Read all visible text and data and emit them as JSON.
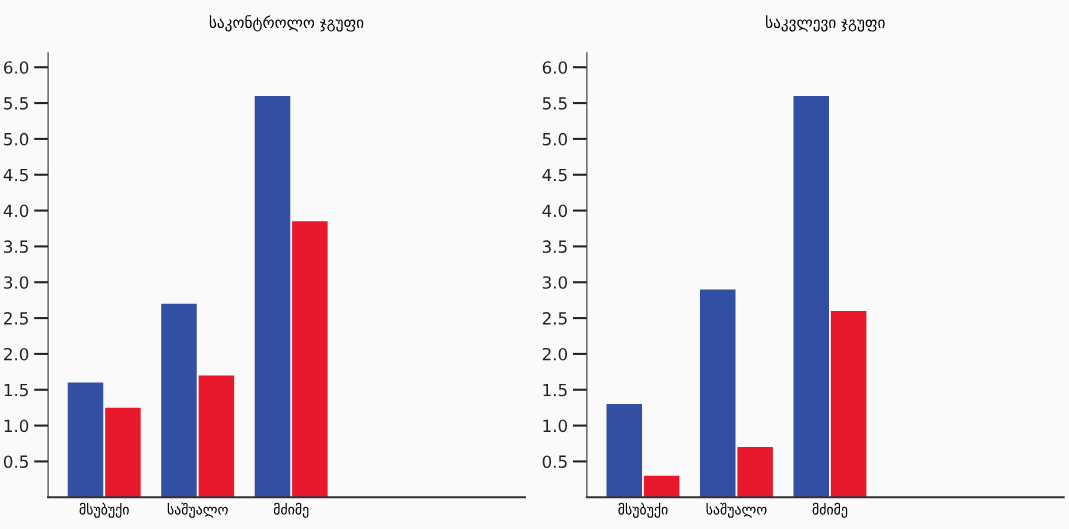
{
  "chart_data": [
    {
      "type": "bar",
      "title": "საკონტროლო ჯგუფი",
      "categories": [
        "მსუბუქი",
        "საშუალო",
        "მძიმე"
      ],
      "series": [
        {
          "color": "#334fa1",
          "values": [
            1.6,
            2.7,
            5.6
          ]
        },
        {
          "color": "#e8192c",
          "values": [
            1.25,
            1.7,
            3.85
          ]
        }
      ],
      "ylim": [
        0,
        6.2
      ],
      "yticks": [
        0.5,
        {
          "value": 1,
          "label": "1.0"
        },
        1.5,
        {
          "value": 2,
          "label": "2.0"
        },
        2.5,
        {
          "value": 3,
          "label": "3.0"
        },
        3.5,
        {
          "value": 4,
          "label": "4.0"
        },
        4.5,
        {
          "value": 5,
          "label": "5.0"
        },
        5.5,
        {
          "value": 6,
          "label": "6.0"
        }
      ]
    },
    {
      "type": "bar",
      "title": "საკვლევი ჯგუფი",
      "categories": [
        "მსუბუქი",
        "საშუალო",
        "მძიმე"
      ],
      "series": [
        {
          "color": "#334fa1",
          "values": [
            1.3,
            2.9,
            5.6
          ]
        },
        {
          "color": "#e8192c",
          "values": [
            0.3,
            0.7,
            2.6
          ]
        }
      ],
      "ylim": [
        0,
        6.2
      ],
      "yticks": [
        0.5,
        {
          "value": 1,
          "label": "1.0"
        },
        1.5,
        {
          "value": 2,
          "label": "2.0"
        },
        2.5,
        {
          "value": 3,
          "label": "3.0"
        },
        3.5,
        {
          "value": 4,
          "label": "4.0"
        },
        4.5,
        {
          "value": 5,
          "label": "5.0"
        },
        5.5,
        {
          "value": 6,
          "label": "6.0"
        }
      ]
    }
  ]
}
